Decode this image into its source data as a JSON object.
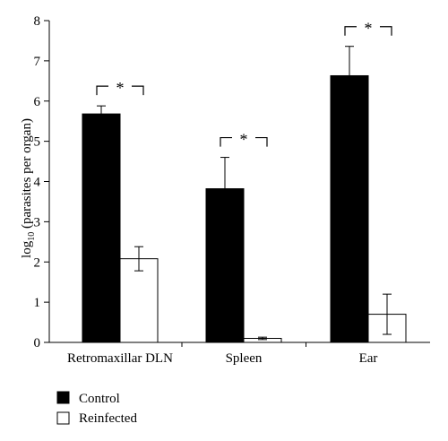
{
  "chart_data": {
    "type": "bar",
    "ylabel": {
      "prefix": "log",
      "subscript": "10",
      "suffix": " (parasites per organ)"
    },
    "ylim": [
      0,
      8
    ],
    "yticks": [
      0,
      1,
      2,
      3,
      4,
      5,
      6,
      7,
      8
    ],
    "categories": [
      "Retromaxillar DLN",
      "Spleen",
      "Ear"
    ],
    "series": [
      {
        "name": "Control",
        "color": "#000000",
        "values": [
          5.68,
          3.82,
          6.63
        ],
        "errors": [
          0.2,
          0.78,
          0.73
        ]
      },
      {
        "name": "Reinfected",
        "color": "#ffffff",
        "values": [
          2.08,
          0.1,
          0.7
        ],
        "errors": [
          0.3,
          0.03,
          0.5
        ]
      }
    ],
    "significance": [
      {
        "category_index": 0,
        "symbol": "*"
      },
      {
        "category_index": 1,
        "symbol": "*"
      },
      {
        "category_index": 2,
        "symbol": "*"
      }
    ],
    "legend_position": "bottom-left",
    "grid": false
  }
}
